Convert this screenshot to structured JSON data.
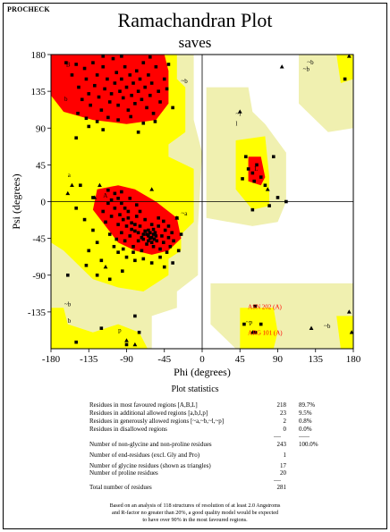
{
  "header": {
    "program": "PROCHECK",
    "title": "Ramachandran Plot",
    "subtitle": "saves"
  },
  "chart_data": {
    "type": "scatter",
    "title": "Ramachandran Plot",
    "subtitle": "saves",
    "xlabel": "Phi (degrees)",
    "ylabel": "Psi (degrees)",
    "xlim": [
      -180,
      180
    ],
    "ylim": [
      -180,
      180
    ],
    "x_ticks": [
      "-180",
      "-135",
      "-90",
      "-45",
      "0",
      "45",
      "90",
      "135",
      "180"
    ],
    "y_ticks": [
      "180",
      "135",
      "90",
      "45",
      "0",
      "-45",
      "-90",
      "-135"
    ],
    "colors": {
      "most_favoured": "#ff0000",
      "additional_allowed": "#ffff00",
      "generously_allowed": "#f0f0b0",
      "disallowed": "#ffffff",
      "residue": "#000000",
      "label": "#ff0000"
    },
    "region_labels": [
      {
        "text": "A",
        "phi": -118,
        "psi": 5
      },
      {
        "text": "B",
        "phi": -162,
        "psi": 165
      },
      {
        "text": "L",
        "phi": 62,
        "psi": 38
      },
      {
        "text": "a",
        "phi": -160,
        "psi": 30
      },
      {
        "text": "b",
        "phi": -164,
        "psi": 123
      },
      {
        "text": "l",
        "phi": 40,
        "psi": 93
      },
      {
        "text": "p",
        "phi": -100,
        "psi": -160
      },
      {
        "text": "~a",
        "phi": -25,
        "psi": -17
      },
      {
        "text": "~b",
        "phi": -25,
        "psi": 145
      },
      {
        "text": "~b",
        "phi": 125,
        "psi": 168
      },
      {
        "text": "~l",
        "phi": 40,
        "psi": 105
      },
      {
        "text": "~p",
        "phi": 52,
        "psi": -150
      },
      {
        "text": "~b",
        "phi": -164,
        "psi": -128
      },
      {
        "text": "b",
        "phi": -160,
        "psi": -148
      },
      {
        "text": "~b",
        "phi": 145,
        "psi": -155
      },
      {
        "text": "~b",
        "phi": 120,
        "psi": 160
      }
    ],
    "labelled_residues": [
      {
        "name": "ASN 202 (A)",
        "phi": 63,
        "psi": -128
      },
      {
        "name": "ARG 101 (A)",
        "phi": 63,
        "psi": -160
      }
    ],
    "residues": [
      [
        -162,
        170
      ],
      [
        -155,
        155
      ],
      [
        -150,
        168
      ],
      [
        -147,
        140
      ],
      [
        -143,
        125
      ],
      [
        -140,
        163
      ],
      [
        -138,
        150
      ],
      [
        -135,
        132
      ],
      [
        -133,
        118
      ],
      [
        -130,
        170
      ],
      [
        -128,
        142
      ],
      [
        -125,
        155
      ],
      [
        -123,
        128
      ],
      [
        -120,
        112
      ],
      [
        -118,
        165
      ],
      [
        -116,
        138
      ],
      [
        -113,
        150
      ],
      [
        -110,
        122
      ],
      [
        -108,
        132
      ],
      [
        -106,
        175
      ],
      [
        -104,
        145
      ],
      [
        -102,
        158
      ],
      [
        -100,
        118
      ],
      [
        -98,
        135
      ],
      [
        -96,
        150
      ],
      [
        -94,
        127
      ],
      [
        -92,
        165
      ],
      [
        -90,
        140
      ],
      [
        -88,
        112
      ],
      [
        -86,
        155
      ],
      [
        -84,
        130
      ],
      [
        -82,
        145
      ],
      [
        -80,
        120
      ],
      [
        -78,
        160
      ],
      [
        -76,
        135
      ],
      [
        -74,
        150
      ],
      [
        -72,
        125
      ],
      [
        -70,
        170
      ],
      [
        -68,
        140
      ],
      [
        -66,
        115
      ],
      [
        -64,
        155
      ],
      [
        -62,
        130
      ],
      [
        -60,
        145
      ],
      [
        -58,
        108
      ],
      [
        -55,
        165
      ],
      [
        -52,
        135
      ],
      [
        -50,
        122
      ],
      [
        -45,
        150
      ],
      [
        -42,
        138
      ],
      [
        -148,
        108
      ],
      [
        -138,
        102
      ],
      [
        -125,
        98
      ],
      [
        -112,
        103
      ],
      [
        -100,
        100
      ],
      [
        -85,
        104
      ],
      [
        -70,
        96
      ],
      [
        -56,
        98
      ],
      [
        -35,
        115
      ],
      [
        -40,
        168
      ],
      [
        -118,
        178
      ],
      [
        -96,
        178
      ],
      [
        -62,
        177
      ],
      [
        -150,
        78
      ],
      [
        -118,
        88
      ],
      [
        -76,
        85
      ],
      [
        -135,
        92
      ],
      [
        -118,
        -12
      ],
      [
        -112,
        -2
      ],
      [
        -108,
        -18
      ],
      [
        -104,
        -8
      ],
      [
        -100,
        -28
      ],
      [
        -98,
        -16
      ],
      [
        -96,
        -38
      ],
      [
        -94,
        -22
      ],
      [
        -92,
        -48
      ],
      [
        -90,
        -30
      ],
      [
        -88,
        -12
      ],
      [
        -86,
        -42
      ],
      [
        -84,
        -26
      ],
      [
        -82,
        -55
      ],
      [
        -80,
        -36
      ],
      [
        -78,
        -18
      ],
      [
        -76,
        -48
      ],
      [
        -74,
        -30
      ],
      [
        -72,
        -60
      ],
      [
        -70,
        -40
      ],
      [
        -68,
        -22
      ],
      [
        -66,
        -52
      ],
      [
        -64,
        -35
      ],
      [
        -62,
        -45
      ],
      [
        -60,
        -28
      ],
      [
        -58,
        -55
      ],
      [
        -56,
        -38
      ],
      [
        -54,
        -48
      ],
      [
        -52,
        -30
      ],
      [
        -50,
        -58
      ],
      [
        -48,
        -42
      ],
      [
        -46,
        -50
      ],
      [
        -44,
        -35
      ],
      [
        -42,
        -62
      ],
      [
        -40,
        -44
      ],
      [
        -38,
        -55
      ],
      [
        -36,
        -38
      ],
      [
        -34,
        -48
      ],
      [
        -66,
        -40
      ],
      [
        -64,
        -42
      ],
      [
        -62,
        -38
      ],
      [
        -60,
        -44
      ],
      [
        -58,
        -40
      ],
      [
        -57,
        -46
      ],
      [
        -55,
        -42
      ],
      [
        -70,
        -46
      ],
      [
        -68,
        -36
      ],
      [
        -72,
        -44
      ],
      [
        -60,
        -50
      ],
      [
        -64,
        -48
      ],
      [
        -58,
        -34
      ],
      [
        -76,
        -38
      ],
      [
        -80,
        -28
      ],
      [
        -84,
        -34
      ],
      [
        -88,
        -20
      ],
      [
        -92,
        -8
      ],
      [
        -96,
        -2
      ],
      [
        -100,
        4
      ],
      [
        -104,
        10
      ],
      [
        -108,
        2
      ],
      [
        -112,
        14
      ],
      [
        -115,
        -25
      ],
      [
        -110,
        -40
      ],
      [
        -105,
        -55
      ],
      [
        -100,
        -62
      ],
      [
        -90,
        -68
      ],
      [
        -80,
        -72
      ],
      [
        -70,
        -70
      ],
      [
        -60,
        -75
      ],
      [
        -50,
        -68
      ],
      [
        -130,
        -35
      ],
      [
        -125,
        -50
      ],
      [
        -135,
        -60
      ],
      [
        -140,
        -22
      ],
      [
        -150,
        -8
      ],
      [
        -145,
        20
      ],
      [
        -138,
        -78
      ],
      [
        -120,
        -72
      ],
      [
        -160,
        -90
      ],
      [
        -30,
        -20
      ],
      [
        -25,
        -40
      ],
      [
        -28,
        -60
      ],
      [
        -35,
        -75
      ],
      [
        -45,
        -80
      ],
      [
        -130,
        5
      ],
      [
        -96,
        12
      ],
      [
        -86,
        4
      ],
      [
        -78,
        -4
      ],
      [
        -74,
        -12
      ],
      [
        -82,
        -62
      ],
      [
        -94,
        -58
      ],
      [
        -102,
        -46
      ],
      [
        -52,
        -20
      ],
      [
        -46,
        -24
      ],
      [
        -40,
        -30
      ],
      [
        -125,
        -90
      ],
      [
        -110,
        -95
      ],
      [
        -95,
        -85
      ],
      [
        55,
        40
      ],
      [
        60,
        35
      ],
      [
        65,
        45
      ],
      [
        70,
        30
      ],
      [
        62,
        25
      ],
      [
        52,
        55
      ],
      [
        75,
        20
      ],
      [
        80,
        -5
      ],
      [
        90,
        5
      ],
      [
        100,
        0
      ],
      [
        85,
        55
      ],
      [
        48,
        28
      ],
      [
        60,
        -10
      ],
      [
        50,
        -150
      ],
      [
        70,
        -150
      ],
      [
        -150,
        -172
      ],
      [
        -90,
        -175
      ],
      [
        -75,
        -160
      ],
      [
        -80,
        -140
      ],
      [
        -120,
        -155
      ],
      [
        170,
        150
      ]
    ],
    "glycine_triangles": [
      [
        -90,
        -170
      ],
      [
        -80,
        -175
      ],
      [
        -155,
        20
      ],
      [
        -160,
        10
      ],
      [
        -128,
        5
      ],
      [
        -122,
        20
      ],
      [
        -60,
        15
      ],
      [
        95,
        165
      ],
      [
        175,
        178
      ],
      [
        178,
        -160
      ],
      [
        -30,
        -20
      ],
      [
        78,
        15
      ],
      [
        60,
        -160
      ],
      [
        175,
        -135
      ],
      [
        45,
        110
      ],
      [
        -115,
        -80
      ],
      [
        130,
        -155
      ]
    ]
  },
  "axis": {
    "x_label": "Phi (degrees)",
    "y_label": "Psi (degrees)"
  },
  "stats": {
    "title": "Plot statistics",
    "rows": [
      {
        "label": "Residues in most favoured regions  [A,B,L]",
        "count": "218",
        "pct": "89.7%"
      },
      {
        "label": "Residues in additional allowed regions  [a,b,l,p]",
        "count": "23",
        "pct": "9.5%"
      },
      {
        "label": "Residues in generously allowed regions  [~a,~b,~l,~p]",
        "count": "2",
        "pct": "0.8%"
      },
      {
        "label": "Residues in disallowed regions",
        "count": "0",
        "pct": "0.0%"
      },
      {
        "label": "Number of non-glycine and non-proline residues",
        "count": "243",
        "pct": "100.0%"
      },
      {
        "label": "Number of end-residues (excl. Gly and Pro)",
        "count": "1",
        "pct": ""
      },
      {
        "label": "Number of glycine residues (shown as triangles)",
        "count": "17",
        "pct": ""
      },
      {
        "label": "Number of proline residues",
        "count": "20",
        "pct": ""
      },
      {
        "label": "Total number of residues",
        "count": "281",
        "pct": ""
      }
    ],
    "separator_count": "----",
    "separator_pct": "------"
  },
  "footnote": {
    "line1": "Based on an analysis of 118 structures of resolution of at least 2.0 Angstroms",
    "line2": "and R-factor no greater than 20%, a good quality model would be expected",
    "line3": "to have over 90% in the most favoured regions."
  }
}
